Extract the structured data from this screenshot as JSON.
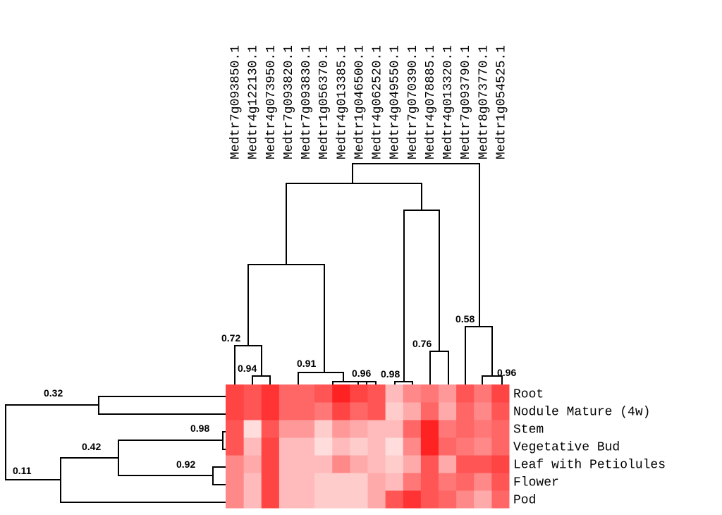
{
  "chart_data": {
    "type": "heatmap",
    "columns": [
      "Medtr7g093850.1",
      "Medtr4g122130.1",
      "Medtr4g073950.1",
      "Medtr7g093820.1",
      "Medtr7g093830.1",
      "Medtr1g056370.1",
      "Medtr4g013385.1",
      "Medtr1g046500.1",
      "Medtr4g062520.1",
      "Medtr4g049550.1",
      "Medtr7g070390.1",
      "Medtr4g078885.1",
      "Medtr4g013320.1",
      "Medtr7g093790.1",
      "Medtr8g073770.1",
      "Medtr1g054525.1"
    ],
    "rows": [
      "Root",
      "Nodule Mature (4w)",
      "Stem",
      "Vegetative Bud",
      "Leaf with Petiolules",
      "Flower",
      "Pod"
    ],
    "colors": [
      [
        "#ff4444",
        "#ff5555",
        "#ff3333",
        "#ff6666",
        "#ff6666",
        "#ff5555",
        "#ff2222",
        "#ff4444",
        "#ff5555",
        "#ffbbbb",
        "#ff8888",
        "#ff7777",
        "#ff9999",
        "#ff5555",
        "#ff7777",
        "#ff4444"
      ],
      [
        "#ff4444",
        "#ff5555",
        "#ff3333",
        "#ff6666",
        "#ff6666",
        "#ff7777",
        "#ff4444",
        "#ff6666",
        "#ff5555",
        "#ffcccc",
        "#ffaaaa",
        "#ff6666",
        "#ffaaaa",
        "#ff6666",
        "#ff8888",
        "#ff5555"
      ],
      [
        "#ff5555",
        "#ffdddd",
        "#ff5555",
        "#ff9999",
        "#ff9999",
        "#ffcccc",
        "#ff9999",
        "#ffaaaa",
        "#ffbbbb",
        "#ffbbbb",
        "#ff6666",
        "#ff2222",
        "#ff7777",
        "#ff6666",
        "#ff7777",
        "#ff6666"
      ],
      [
        "#ff5555",
        "#ffbbbb",
        "#ff4444",
        "#ffbbbb",
        "#ffbbbb",
        "#ffdddd",
        "#ffbbbb",
        "#ffcccc",
        "#ffbbbb",
        "#ffdddd",
        "#ff8888",
        "#ff2222",
        "#ff6666",
        "#ff7777",
        "#ff8888",
        "#ff6666"
      ],
      [
        "#ff8888",
        "#ffaaaa",
        "#ff4444",
        "#ffbbbb",
        "#ffbbbb",
        "#ffbbbb",
        "#ff8888",
        "#ffaaaa",
        "#ffbbbb",
        "#ffcccc",
        "#ffaaaa",
        "#ff5555",
        "#ffaaaa",
        "#ff5555",
        "#ff5555",
        "#ff4444"
      ],
      [
        "#ff8888",
        "#ffbbbb",
        "#ff4444",
        "#ffbbbb",
        "#ffbbbb",
        "#ffcccc",
        "#ffcccc",
        "#ffcccc",
        "#ffaaaa",
        "#ffbbbb",
        "#ff7777",
        "#ff5555",
        "#ff7777",
        "#ff6666",
        "#ff8888",
        "#ff5555"
      ],
      [
        "#ff8888",
        "#ffbbbb",
        "#ff4444",
        "#ffbbbb",
        "#ffbbbb",
        "#ffcccc",
        "#ffcccc",
        "#ffcccc",
        "#ffaaaa",
        "#ff5555",
        "#ff3333",
        "#ff5555",
        "#ff6666",
        "#ff8888",
        "#ffaaaa",
        "#ff6666"
      ]
    ],
    "column_tree_labels": [
      "0.72",
      "0.94",
      "0.91",
      "0.96",
      "0.98",
      "0.76",
      "0.58",
      "0.96"
    ],
    "row_tree_labels": [
      "0.32",
      "0.42",
      "0.98",
      "0.92",
      "0.11"
    ]
  }
}
